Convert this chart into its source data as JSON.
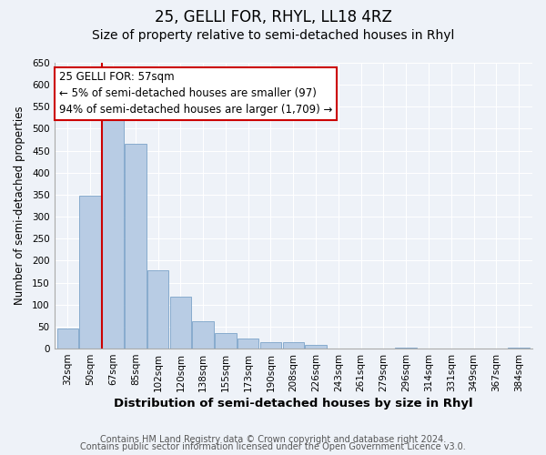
{
  "title1": "25, GELLI FOR, RHYL, LL18 4RZ",
  "title2": "Size of property relative to semi-detached houses in Rhyl",
  "xlabel": "Distribution of semi-detached houses by size in Rhyl",
  "ylabel": "Number of semi-detached properties",
  "bar_labels": [
    "32sqm",
    "50sqm",
    "67sqm",
    "85sqm",
    "102sqm",
    "120sqm",
    "138sqm",
    "155sqm",
    "173sqm",
    "190sqm",
    "208sqm",
    "226sqm",
    "243sqm",
    "261sqm",
    "279sqm",
    "296sqm",
    "314sqm",
    "331sqm",
    "349sqm",
    "367sqm",
    "384sqm"
  ],
  "bar_values": [
    46,
    348,
    535,
    465,
    178,
    118,
    62,
    35,
    22,
    15,
    15,
    8,
    1,
    0,
    0,
    2,
    0,
    0,
    0,
    0,
    2
  ],
  "bar_color": "#b8cce4",
  "bar_edge_color": "#7ba3c8",
  "annotation_text": "25 GELLI FOR: 57sqm\n← 5% of semi-detached houses are smaller (97)\n94% of semi-detached houses are larger (1,709) →",
  "annotation_box_edgecolor": "#cc0000",
  "annotation_line_color": "#cc0000",
  "red_line_x": 1.5,
  "ylim": [
    0,
    650
  ],
  "yticks": [
    0,
    50,
    100,
    150,
    200,
    250,
    300,
    350,
    400,
    450,
    500,
    550,
    600,
    650
  ],
  "footer1": "Contains HM Land Registry data © Crown copyright and database right 2024.",
  "footer2": "Contains public sector information licensed under the Open Government Licence v3.0.",
  "background_color": "#eef2f8",
  "plot_bg_color": "#eef2f8",
  "grid_color": "#ffffff",
  "title1_fontsize": 12,
  "title2_fontsize": 10,
  "xlabel_fontsize": 9.5,
  "ylabel_fontsize": 8.5,
  "tick_fontsize": 7.5,
  "footer_fontsize": 7,
  "annot_fontsize": 8.5
}
